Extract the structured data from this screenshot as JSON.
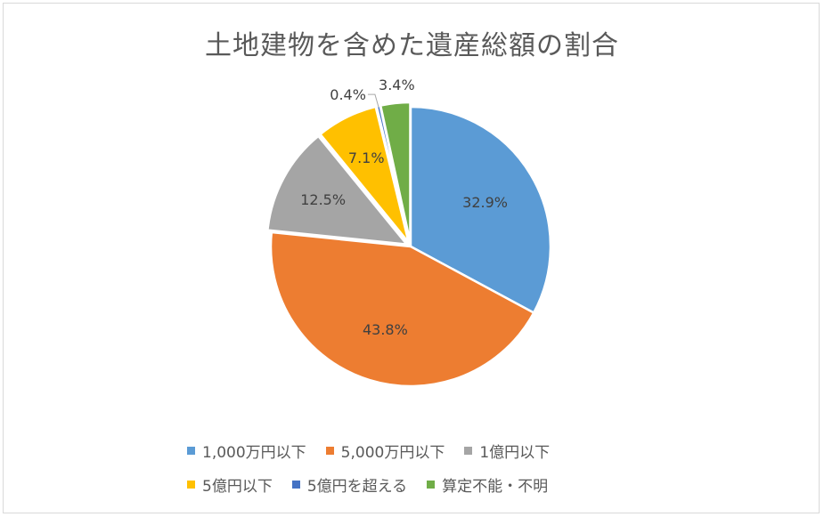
{
  "chart_data": {
    "type": "pie",
    "title": "土地建物を含めた遺産総額の割合",
    "categories": [
      "1,000万円以下",
      "5,000万円以下",
      "1億円以下",
      "5億円以下",
      "5億円を超える",
      "算定不能・不明"
    ],
    "values": [
      32.9,
      43.8,
      12.5,
      7.1,
      0.4,
      3.4
    ],
    "labels": [
      "32.9%",
      "43.8%",
      "12.5%",
      "7.1%",
      "0.4%",
      "3.4%"
    ],
    "colors": [
      "#5b9bd5",
      "#ed7d31",
      "#a5a5a5",
      "#ffc000",
      "#4472c4",
      "#70ad47"
    ],
    "legend_position": "bottom"
  }
}
